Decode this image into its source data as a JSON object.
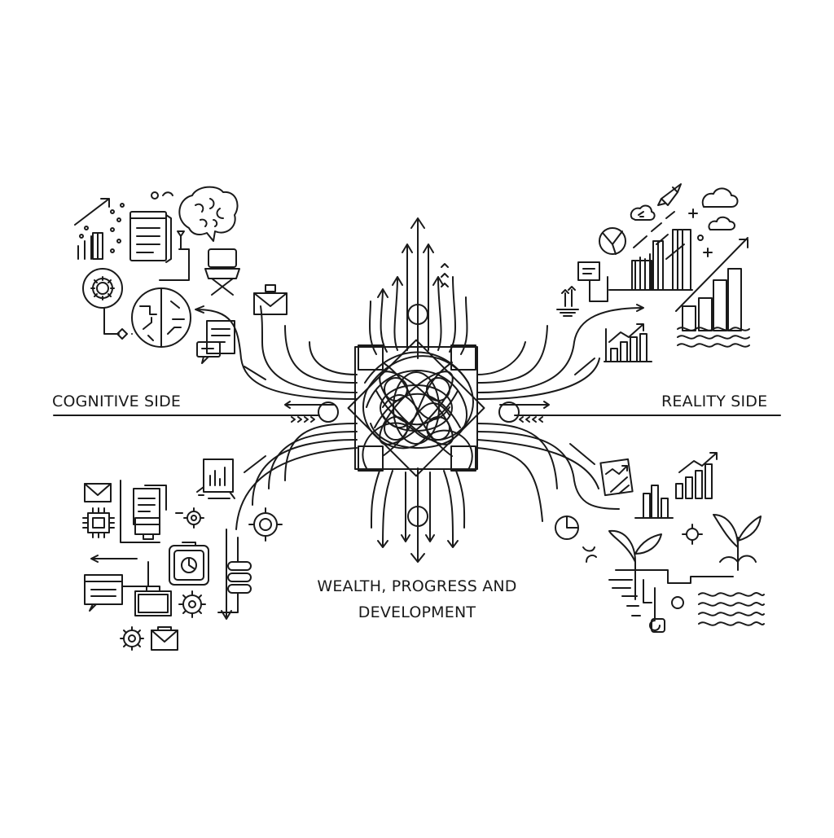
{
  "labels": {
    "left": "COGNITIVE SIDE",
    "right": "REALITY SIDE",
    "center_line1": "WEALTH, PROGRESS AND",
    "center_line2": "DEVELOPMENT"
  },
  "colors": {
    "ink": "#1a1a1a",
    "background": "#ffffff"
  },
  "icons": {
    "cognitive": [
      "trend-chart-icon",
      "book-icon",
      "brain-icon",
      "gear-icon",
      "brain-map-icon",
      "chair-icon",
      "envelope-icon",
      "document-chat-icon",
      "mail-icon",
      "chip-icon",
      "clipboard-icon",
      "computer-icon",
      "target-icon",
      "browser-icon",
      "database-icon",
      "briefcase-icon"
    ],
    "reality": [
      "rocket-icon",
      "cloud-icon",
      "pie-chart-icon",
      "bar-chart-icon",
      "wave-icon",
      "note-icon",
      "plug-icon",
      "bar-chart-icon",
      "growth-chart-icon",
      "plant-icon",
      "root-system-icon"
    ]
  }
}
